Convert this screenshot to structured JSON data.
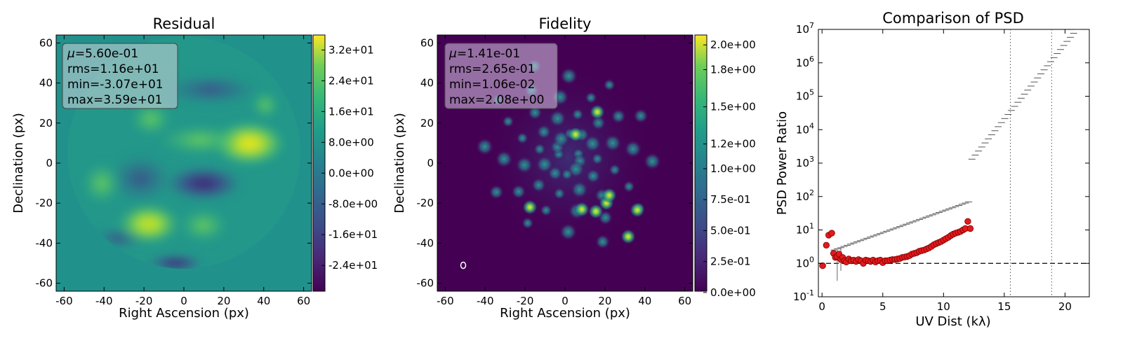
{
  "chart_data": [
    {
      "type": "heatmap",
      "title": "Residual",
      "xlabel": "Right Ascension (px)",
      "ylabel": "Declination (px)",
      "xlim": [
        -64,
        64
      ],
      "ylim": [
        -64,
        64
      ],
      "xticks": [
        "-60",
        "-40",
        "-20",
        "0",
        "20",
        "40",
        "60"
      ],
      "yticks": [
        "60",
        "40",
        "20",
        "0",
        "-20",
        "-40",
        "-60"
      ],
      "colormap": "viridis",
      "colorbar_range": [
        -30.7,
        35.9
      ],
      "colorbar_ticks": [
        "3.2e+01",
        "2.4e+01",
        "1.6e+01",
        "8.0e+00",
        "0.0e+00",
        "-8.0e+00",
        "-1.6e+01",
        "-2.4e+01"
      ],
      "stats": [
        {
          "label": "μ",
          "value": "=5.60e-01"
        },
        {
          "label": "",
          "value": "rms=1.16e+01"
        },
        {
          "label": "",
          "value": "min=-3.07e+01"
        },
        {
          "label": "",
          "value": "max=3.59e+01"
        }
      ]
    },
    {
      "type": "heatmap",
      "title": "Fidelity",
      "xlabel": "Right Ascension (px)",
      "ylabel": "Declination (px)",
      "xlim": [
        -64,
        64
      ],
      "ylim": [
        -64,
        64
      ],
      "xticks": [
        "-60",
        "-40",
        "-20",
        "0",
        "20",
        "40",
        "60"
      ],
      "yticks": [
        "60",
        "40",
        "20",
        "0",
        "-20",
        "-40",
        "-60"
      ],
      "colormap": "viridis",
      "colorbar_range": [
        0.0106,
        2.08
      ],
      "colorbar_ticks": [
        "2.0e+00",
        "1.8e+00",
        "1.5e+00",
        "1.2e+00",
        "1.0e+00",
        "7.5e-01",
        "5.0e-01",
        "2.5e-01",
        "0.0e+00"
      ],
      "stats": [
        {
          "label": "μ",
          "value": "=1.41e-01"
        },
        {
          "label": "",
          "value": "rms=2.65e-01"
        },
        {
          "label": "",
          "value": "min=1.06e-02"
        },
        {
          "label": "",
          "value": "max=2.08e+00"
        }
      ]
    },
    {
      "type": "scatter",
      "title": "Comparison of PSD",
      "xlabel": "UV Dist (kλ)",
      "ylabel": "PSD Power Ratio",
      "xlim": [
        -0.3,
        22
      ],
      "ylim": [
        0.1,
        10000000
      ],
      "yscale": "log",
      "xticks": [
        "0",
        "5",
        "10",
        "15",
        "20"
      ],
      "yticks_exp": [
        "7",
        "6",
        "5",
        "4",
        "3",
        "2",
        "1",
        "0",
        "-1"
      ],
      "hline": 1,
      "vlines": [
        15.5,
        18.9
      ],
      "points_x": [
        0.05,
        0.35,
        0.55,
        0.8,
        0.95,
        1.1,
        1.25,
        1.4,
        1.55,
        1.7,
        1.85,
        2.0,
        2.2,
        2.4,
        2.6,
        2.8,
        3.0,
        3.2,
        3.4,
        3.6,
        3.8,
        4.0,
        4.2,
        4.4,
        4.6,
        4.8,
        5.0,
        5.2,
        5.4,
        5.6,
        5.8,
        6.0,
        6.2,
        6.4,
        6.6,
        6.8,
        7.0,
        7.2,
        7.4,
        7.6,
        7.8,
        8.0,
        8.2,
        8.4,
        8.6,
        8.8,
        9.0,
        9.2,
        9.4,
        9.6,
        9.8,
        10.0,
        10.2,
        10.4,
        10.6,
        10.8,
        11.0,
        11.2,
        11.4,
        11.6,
        11.8,
        12.0,
        12.2
      ],
      "points_y": [
        0.85,
        3.5,
        7.0,
        8.0,
        2.0,
        1.5,
        1.6,
        1.9,
        1.3,
        1.5,
        1.2,
        1.1,
        1.35,
        1.2,
        1.25,
        1.15,
        1.3,
        1.2,
        1.0,
        1.25,
        1.2,
        1.15,
        1.25,
        1.1,
        1.2,
        1.25,
        1.05,
        1.2,
        1.2,
        1.25,
        1.3,
        1.3,
        1.35,
        1.4,
        1.5,
        1.55,
        1.6,
        1.7,
        1.9,
        2.0,
        2.1,
        2.3,
        2.4,
        2.5,
        2.7,
        2.9,
        3.2,
        3.6,
        3.9,
        4.2,
        4.5,
        5.0,
        5.5,
        6.0,
        6.8,
        7.5,
        8.0,
        8.5,
        9.0,
        10.0,
        11.0,
        18.0,
        11.0
      ]
    }
  ]
}
